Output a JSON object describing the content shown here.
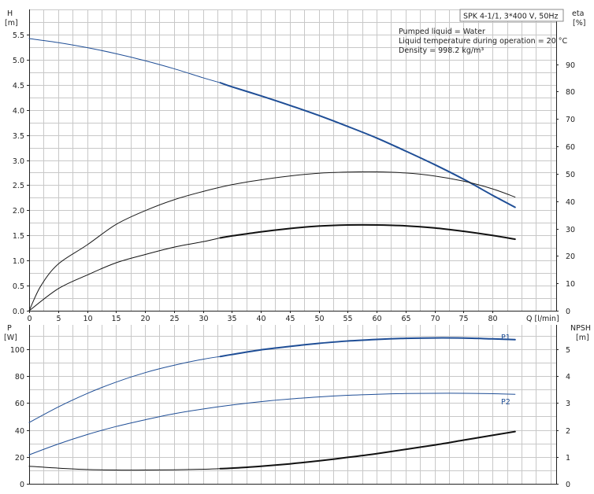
{
  "chart_data": [
    {
      "type": "line",
      "panel": "top",
      "title_box": "SPK 4-1/1, 3*400 V, 50Hz",
      "notes": [
        "Pumped liquid = Water",
        "Liquid temperature during operation = 20 °C",
        "Density = 998.2 kg/m³"
      ],
      "left_axis": {
        "label": "H",
        "unit": "[m]",
        "range": [
          0,
          6.0
        ],
        "ticks": [
          0.0,
          0.5,
          1.0,
          1.5,
          2.0,
          2.5,
          3.0,
          3.5,
          4.0,
          4.5,
          5.0,
          5.5
        ]
      },
      "right_axis": {
        "label": "eta",
        "unit": "[%]",
        "range": [
          0,
          110
        ],
        "ticks": [
          0,
          10,
          20,
          30,
          40,
          50,
          60,
          70,
          80,
          90
        ]
      },
      "x_axis": {
        "label": "Q [l/min]",
        "range": [
          0,
          91
        ],
        "ticks": [
          0,
          5,
          10,
          15,
          20,
          25,
          30,
          35,
          40,
          45,
          50,
          55,
          60,
          65,
          70,
          75,
          80
        ]
      },
      "grid": true,
      "series": [
        {
          "axis": "left",
          "color": "#1f4e96",
          "bold_from": 33,
          "x": [
            0,
            5,
            10,
            15,
            20,
            25,
            30,
            33,
            35,
            40,
            45,
            50,
            55,
            60,
            65,
            70,
            75,
            80,
            83.9
          ],
          "y": [
            5.42,
            5.34,
            5.24,
            5.12,
            4.98,
            4.82,
            4.64,
            4.54,
            4.46,
            4.28,
            4.09,
            3.89,
            3.67,
            3.44,
            3.18,
            2.91,
            2.62,
            2.3,
            2.06
          ]
        },
        {
          "axis": "right",
          "color": "#1a1a1a",
          "bold_from": 100,
          "x": [
            0,
            2,
            5,
            10,
            15,
            20,
            25,
            30,
            35,
            40,
            45,
            50,
            55,
            60,
            65,
            70,
            75,
            80,
            83.9
          ],
          "y": [
            0,
            9,
            17,
            24,
            31.5,
            36.5,
            40.5,
            43.5,
            46,
            47.8,
            49.2,
            50.2,
            50.6,
            50.7,
            50.3,
            49.2,
            47.3,
            44.5,
            41.5
          ]
        },
        {
          "axis": "right",
          "color": "#111111",
          "bold_from": 33,
          "x": [
            0,
            5,
            10,
            15,
            20,
            25,
            30,
            33,
            35,
            40,
            45,
            50,
            55,
            60,
            65,
            70,
            75,
            80,
            83.9
          ],
          "y": [
            0,
            8,
            13,
            17.5,
            20.5,
            23.2,
            25.2,
            26.6,
            27.3,
            28.8,
            30,
            30.9,
            31.3,
            31.3,
            31,
            30.2,
            29,
            27.5,
            26.1
          ]
        }
      ]
    },
    {
      "type": "line",
      "panel": "bottom",
      "left_axis": {
        "label": "P",
        "unit": "[W]",
        "range": [
          0,
          118
        ],
        "ticks": [
          0,
          20,
          40,
          60,
          80,
          100
        ]
      },
      "right_axis": {
        "label": "NPSH",
        "unit": "[m]",
        "range": [
          0,
          5.9
        ],
        "ticks": [
          0,
          1,
          2,
          3,
          4,
          5
        ]
      },
      "grid": true,
      "series": [
        {
          "name": "P1",
          "axis": "left",
          "color": "#1f4e96",
          "bold_from": 33,
          "x": [
            0,
            5,
            10,
            15,
            20,
            25,
            30,
            33,
            35,
            40,
            45,
            50,
            55,
            60,
            65,
            70,
            75,
            80,
            83.9
          ],
          "y": [
            45.5,
            57,
            67,
            75.5,
            82.5,
            88,
            92.5,
            94.5,
            96,
            99.5,
            102,
            104.3,
            106,
            107.2,
            108,
            108.3,
            108.2,
            107.6,
            107
          ]
        },
        {
          "name": "P2",
          "axis": "left",
          "color": "#1f4e96",
          "bold_from": 100,
          "x": [
            0,
            5,
            10,
            15,
            20,
            25,
            30,
            35,
            40,
            45,
            50,
            55,
            60,
            65,
            70,
            75,
            80,
            83.9
          ],
          "y": [
            21.5,
            29.5,
            36.5,
            42.5,
            47.5,
            52,
            55.5,
            58.5,
            61,
            63,
            64.5,
            65.7,
            66.5,
            67,
            67.2,
            67.2,
            66.9,
            66.5
          ]
        },
        {
          "axis": "right",
          "color": "#111111",
          "bold_from": 33,
          "x": [
            0,
            5,
            10,
            15,
            20,
            25,
            30,
            33,
            35,
            40,
            45,
            50,
            55,
            60,
            65,
            70,
            75,
            80,
            83.9
          ],
          "y": [
            0.65,
            0.58,
            0.53,
            0.51,
            0.51,
            0.52,
            0.54,
            0.56,
            0.58,
            0.65,
            0.74,
            0.85,
            0.98,
            1.12,
            1.28,
            1.44,
            1.62,
            1.8,
            1.94
          ]
        }
      ]
    }
  ]
}
